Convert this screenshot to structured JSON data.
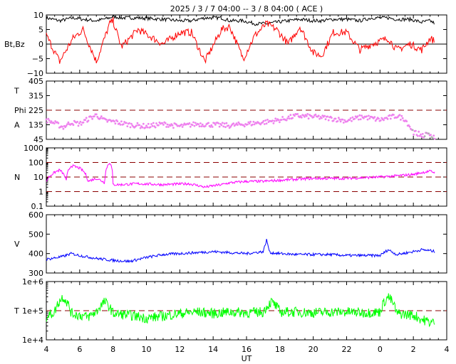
{
  "title": "2025 /  3 /  7   04:00 -- 3 /  8   04:00 ( ACE )",
  "x_axis": {
    "label": "UT",
    "ticks": [
      "4",
      "6",
      "8",
      "10",
      "12",
      "14",
      "16",
      "18",
      "20",
      "22",
      "0",
      "2",
      "4"
    ]
  },
  "colors": {
    "bt": "#000000",
    "bz": "#ff0000",
    "phi": "#ee82ee",
    "phi_gray": "#b0b0b0",
    "density": "#ff00ff",
    "speed": "#0000ff",
    "temperature": "#00ff00",
    "reference_line": "#8b0000",
    "zero_line": "#000000"
  },
  "chart_data": [
    {
      "type": "line",
      "panel": "magnetic-field",
      "ylabel": "Bt,Bz",
      "ylim": [
        -10,
        10
      ],
      "yticks": [
        "10",
        "5",
        "0",
        "−5",
        "−10"
      ],
      "reference_lines": [
        0
      ],
      "x_hours": [
        0,
        0.8,
        1.6,
        2.2,
        3.0,
        3.8,
        4.0,
        4.5,
        5.5,
        7.0,
        8.0,
        8.7,
        9.5,
        10.5,
        11.0,
        11.8,
        12.5,
        13.2,
        13.8,
        14.5,
        15.2,
        16.0,
        16.5,
        17.2,
        18.0,
        18.8,
        19.5,
        20.5,
        21.0,
        21.8,
        22.5,
        23.0,
        23.3
      ],
      "series": [
        {
          "key": "bt",
          "values": [
            9,
            8,
            9,
            8.5,
            8,
            9,
            9.5,
            9,
            9,
            8.5,
            8,
            8,
            9,
            9,
            8,
            8,
            7,
            7,
            7.5,
            8,
            8.5,
            8,
            8,
            8.5,
            8.5,
            8,
            9,
            9,
            8.5,
            8.5,
            7.5,
            8,
            7
          ]
        },
        {
          "key": "bz",
          "values": [
            3,
            -6,
            2,
            5,
            -6,
            7,
            8,
            -1,
            5,
            0,
            4,
            4,
            -6,
            5,
            6,
            -5,
            3,
            7,
            5,
            0,
            6,
            -3,
            -4,
            4,
            4,
            -2,
            0,
            2,
            -2,
            0,
            -2,
            2,
            1
          ]
        }
      ]
    },
    {
      "type": "scatter",
      "panel": "phi",
      "ylabel": [
        "T",
        "Phi",
        "A"
      ],
      "ylim": [
        45,
        405
      ],
      "yticks": [
        "405",
        "315",
        "225",
        "135",
        "45"
      ],
      "reference_lines": [
        225
      ],
      "x_hours": [
        0,
        0.5,
        1.0,
        1.5,
        2.0,
        2.5,
        3.0,
        3.5,
        4.0,
        5.0,
        6.0,
        7.0,
        8.0,
        9.0,
        10.0,
        11.0,
        12.0,
        13.0,
        14.0,
        15.0,
        16.0,
        17.0,
        18.0,
        19.0,
        20.0,
        21.0,
        21.5,
        22.0,
        22.5,
        23.0,
        23.3
      ],
      "values": [
        165,
        145,
        120,
        150,
        140,
        170,
        195,
        160,
        155,
        135,
        125,
        140,
        125,
        140,
        135,
        130,
        140,
        150,
        165,
        190,
        185,
        175,
        160,
        185,
        165,
        190,
        170,
        90,
        70,
        75,
        60
      ]
    },
    {
      "type": "line",
      "panel": "density",
      "ylabel": "N",
      "scale": "log",
      "ylim": [
        0.1,
        1000
      ],
      "yticks": [
        "1000",
        "100",
        "10",
        "1",
        "0.1"
      ],
      "reference_lines": [
        100,
        10,
        1
      ],
      "x_hours": [
        0,
        0.8,
        1.2,
        1.5,
        2.0,
        2.5,
        3.0,
        3.5,
        3.8,
        4.0,
        4.5,
        5.5,
        7.0,
        8.5,
        9.5,
        10.5,
        11.0,
        12.0,
        13.0,
        14.0,
        15.0,
        16.0,
        17.0,
        18.0,
        19.0,
        20.0,
        21.0,
        22.0,
        22.5,
        23.0,
        23.3
      ],
      "values": [
        5,
        30,
        5,
        60,
        40,
        5,
        8,
        4,
        100,
        3,
        3,
        3.5,
        3,
        3.5,
        2,
        3,
        4,
        5,
        5,
        6,
        7,
        8,
        8,
        8,
        9,
        10,
        12,
        15,
        20,
        25,
        20
      ]
    },
    {
      "type": "line",
      "panel": "speed",
      "ylabel": "V",
      "ylim": [
        300,
        600
      ],
      "yticks": [
        "600",
        "500",
        "400",
        "300"
      ],
      "x_hours": [
        0,
        1.0,
        1.5,
        2.0,
        3.0,
        3.5,
        4.0,
        5.0,
        6.0,
        7.0,
        8.0,
        9.0,
        10.0,
        11.0,
        12.0,
        13.0,
        13.2,
        13.4,
        14.0,
        15.0,
        16.0,
        17.0,
        18.0,
        19.0,
        20.0,
        20.5,
        21.0,
        22.0,
        22.5,
        23.0,
        23.3
      ],
      "values": [
        370,
        385,
        400,
        390,
        375,
        370,
        365,
        360,
        380,
        395,
        400,
        405,
        410,
        405,
        400,
        410,
        470,
        405,
        400,
        395,
        395,
        395,
        390,
        390,
        390,
        420,
        395,
        410,
        420,
        415,
        410
      ]
    },
    {
      "type": "line",
      "panel": "temperature",
      "ylabel": "T",
      "scale": "log",
      "ylim": [
        10000,
        1000000
      ],
      "yticks": [
        "1e+6",
        "1e+5",
        "1e+4"
      ],
      "reference_lines": [
        100000
      ],
      "x_hours": [
        0,
        0.5,
        1.0,
        1.5,
        2.0,
        2.5,
        3.0,
        3.5,
        4.0,
        5.0,
        6.0,
        7.0,
        8.0,
        9.0,
        10.0,
        11.0,
        12.0,
        13.0,
        13.5,
        14.0,
        15.0,
        16.0,
        17.0,
        18.0,
        19.0,
        20.0,
        20.5,
        21.0,
        22.0,
        22.5,
        23.0,
        23.3
      ],
      "values": [
        60000,
        90000,
        300000,
        80000,
        70000,
        60000,
        90000,
        200000,
        80000,
        70000,
        55000,
        65000,
        80000,
        90000,
        80000,
        90000,
        85000,
        90000,
        200000,
        90000,
        90000,
        85000,
        90000,
        90000,
        85000,
        90000,
        300000,
        80000,
        70000,
        50000,
        40000,
        40000
      ]
    }
  ]
}
